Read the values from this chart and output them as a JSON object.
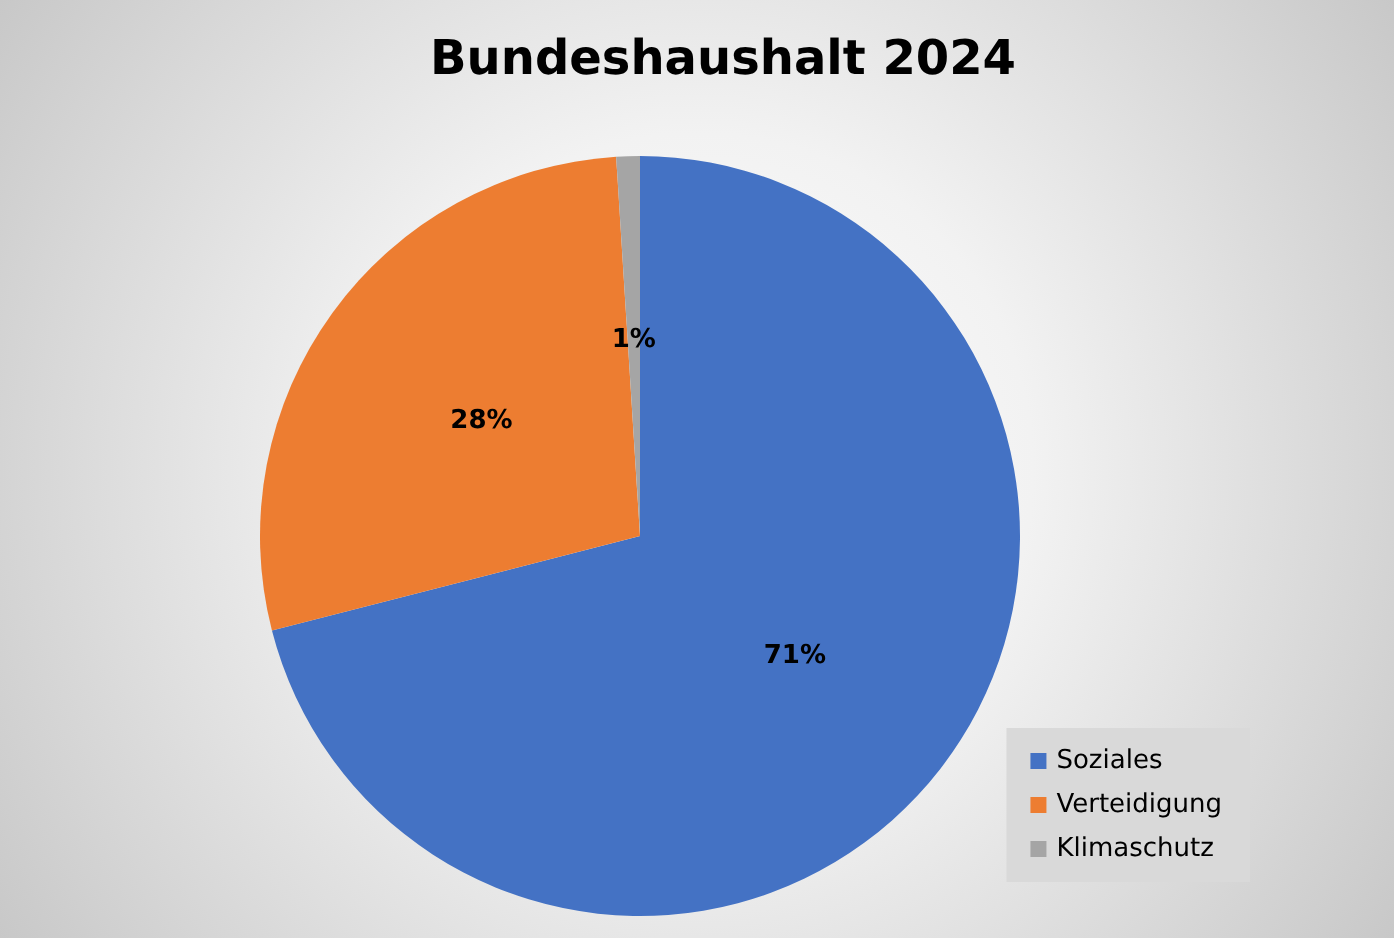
{
  "chart_data": {
    "type": "pie",
    "title": "Bundeshaushalt 2024",
    "categories": [
      "Soziales",
      "Verteidigung",
      "Klimaschutz"
    ],
    "values": [
      71,
      28,
      1
    ],
    "colors": [
      "#4472c4",
      "#ed7d31",
      "#a5a5a5"
    ],
    "value_labels": [
      "71%",
      "28%",
      "1%"
    ],
    "legend": "bottom right"
  }
}
